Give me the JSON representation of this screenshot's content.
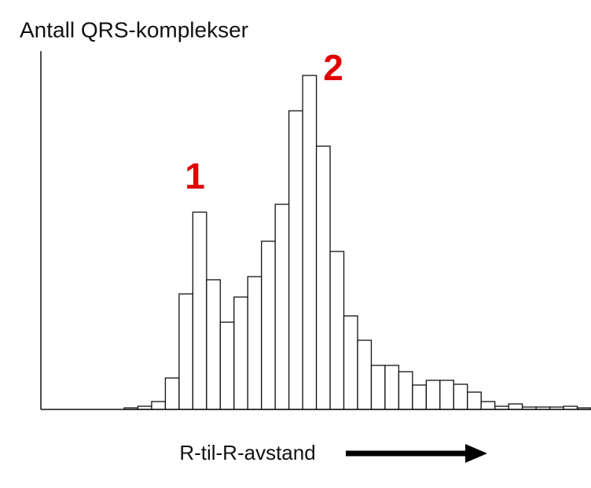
{
  "chart_data": {
    "type": "histogram",
    "ylabel": "Antall QRS-komplekser",
    "xlabel": "R-til-R-avstand",
    "annotations": [
      "1",
      "2"
    ],
    "values": [
      2,
      4,
      10,
      40,
      147,
      251,
      165,
      111,
      143,
      169,
      214,
      261,
      380,
      425,
      335,
      201,
      119,
      88,
      56,
      56,
      48,
      31,
      37,
      37,
      32,
      22,
      10,
      4,
      7,
      3,
      3,
      3,
      4,
      2
    ],
    "color": "#ffffff"
  }
}
